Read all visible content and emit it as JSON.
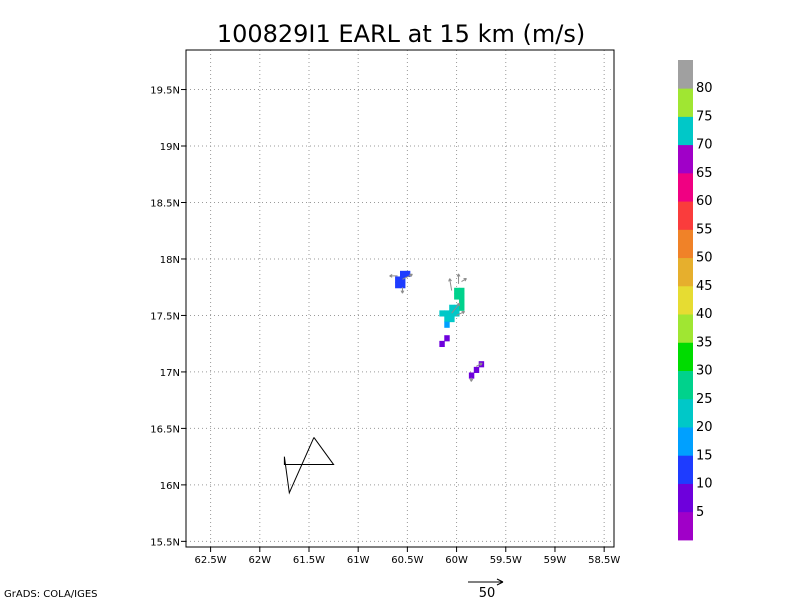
{
  "chart_data": {
    "type": "heatmap",
    "title": "100829I1 EARL at 15 km (m/s)",
    "xlabel": "",
    "ylabel": "",
    "xlim": [
      -62.75,
      -58.4
    ],
    "ylim": [
      15.45,
      19.85
    ],
    "x_ticks": [
      -62.5,
      -62,
      -61.5,
      -61,
      -60.5,
      -60,
      -59.5,
      -59,
      -58.5
    ],
    "x_tick_labels": [
      "62.5W",
      "62W",
      "61.5W",
      "61W",
      "60.5W",
      "60W",
      "59.5W",
      "59W",
      "58.5W"
    ],
    "y_ticks": [
      15.5,
      16,
      16.5,
      17,
      17.5,
      18,
      18.5,
      19,
      19.5
    ],
    "y_tick_labels": [
      "15.5N",
      "16N",
      "16.5N",
      "17N",
      "17.5N",
      "18N",
      "18.5N",
      "19N",
      "19.5N"
    ],
    "grid": true,
    "colorbar": {
      "levels": [
        5,
        10,
        15,
        20,
        25,
        30,
        35,
        40,
        45,
        50,
        55,
        60,
        65,
        70,
        75,
        80
      ],
      "labels": [
        "5",
        "10",
        "15",
        "20",
        "25",
        "30",
        "35",
        "40",
        "45",
        "50",
        "55",
        "60",
        "65",
        "70",
        "75",
        "80"
      ],
      "colors": [
        "#a000c8",
        "#6e00dc",
        "#1e3cff",
        "#00a0ff",
        "#00c8c8",
        "#00d28c",
        "#00dc00",
        "#a0e632",
        "#e6dc32",
        "#e6af2d",
        "#f08228",
        "#fa3c3c",
        "#f00082",
        "#a000c8",
        "#00c8c8",
        "#a0e632",
        "#a0a0a0"
      ]
    },
    "cells": [
      {
        "lon": -60.55,
        "lat": 17.87,
        "speed": 13
      },
      {
        "lon": -60.5,
        "lat": 17.87,
        "speed": 13
      },
      {
        "lon": -60.6,
        "lat": 17.82,
        "speed": 13
      },
      {
        "lon": -60.55,
        "lat": 17.82,
        "speed": 13
      },
      {
        "lon": -60.6,
        "lat": 17.77,
        "speed": 13
      },
      {
        "lon": -60.55,
        "lat": 17.77,
        "speed": 13
      },
      {
        "lon": -59.95,
        "lat": 17.72,
        "speed": 28
      },
      {
        "lon": -60.0,
        "lat": 17.72,
        "speed": 25
      },
      {
        "lon": -59.95,
        "lat": 17.67,
        "speed": 28
      },
      {
        "lon": -60.0,
        "lat": 17.67,
        "speed": 25
      },
      {
        "lon": -59.95,
        "lat": 17.62,
        "speed": 27
      },
      {
        "lon": -60.05,
        "lat": 17.57,
        "speed": 22
      },
      {
        "lon": -60.0,
        "lat": 17.57,
        "speed": 23
      },
      {
        "lon": -59.95,
        "lat": 17.57,
        "speed": 27
      },
      {
        "lon": -60.15,
        "lat": 17.52,
        "speed": 23
      },
      {
        "lon": -60.1,
        "lat": 17.52,
        "speed": 22
      },
      {
        "lon": -60.05,
        "lat": 17.52,
        "speed": 22
      },
      {
        "lon": -60.0,
        "lat": 17.52,
        "speed": 23
      },
      {
        "lon": -60.1,
        "lat": 17.47,
        "speed": 20
      },
      {
        "lon": -60.05,
        "lat": 17.47,
        "speed": 20
      },
      {
        "lon": -60.1,
        "lat": 17.42,
        "speed": 18
      },
      {
        "lon": -60.1,
        "lat": 17.3,
        "speed": 7
      },
      {
        "lon": -60.15,
        "lat": 17.25,
        "speed": 7
      },
      {
        "lon": -59.75,
        "lat": 17.07,
        "speed": 7
      },
      {
        "lon": -59.8,
        "lat": 17.02,
        "speed": 7
      },
      {
        "lon": -59.85,
        "lat": 16.97,
        "speed": 7
      }
    ],
    "vectors": [
      {
        "lon": -60.6,
        "lat": 17.85,
        "u": -8,
        "v": 0
      },
      {
        "lon": -60.55,
        "lat": 17.82,
        "u": 10,
        "v": 5
      },
      {
        "lon": -60.55,
        "lat": 17.75,
        "u": 0,
        "v": -6
      },
      {
        "lon": -60.05,
        "lat": 17.72,
        "u": -2,
        "v": 12
      },
      {
        "lon": -59.98,
        "lat": 17.78,
        "u": 0,
        "v": 10
      },
      {
        "lon": -59.95,
        "lat": 17.8,
        "u": 5,
        "v": 3
      },
      {
        "lon": -60.05,
        "lat": 17.52,
        "u": 8,
        "v": 10
      },
      {
        "lon": -60.0,
        "lat": 17.5,
        "u": 8,
        "v": 4
      },
      {
        "lon": -59.8,
        "lat": 17.05,
        "u": 6,
        "v": 3
      },
      {
        "lon": -59.85,
        "lat": 16.95,
        "u": 0,
        "v": -4
      }
    ],
    "track": [
      [
        -61.45,
        16.42
      ],
      [
        -61.25,
        16.18
      ],
      [
        -61.75,
        16.18
      ],
      [
        -61.75,
        16.25
      ],
      [
        -61.7,
        15.93
      ],
      [
        -61.45,
        16.42
      ]
    ],
    "reference_vector": {
      "value": "50"
    }
  },
  "credit": "GrADS: COLA/IGES"
}
